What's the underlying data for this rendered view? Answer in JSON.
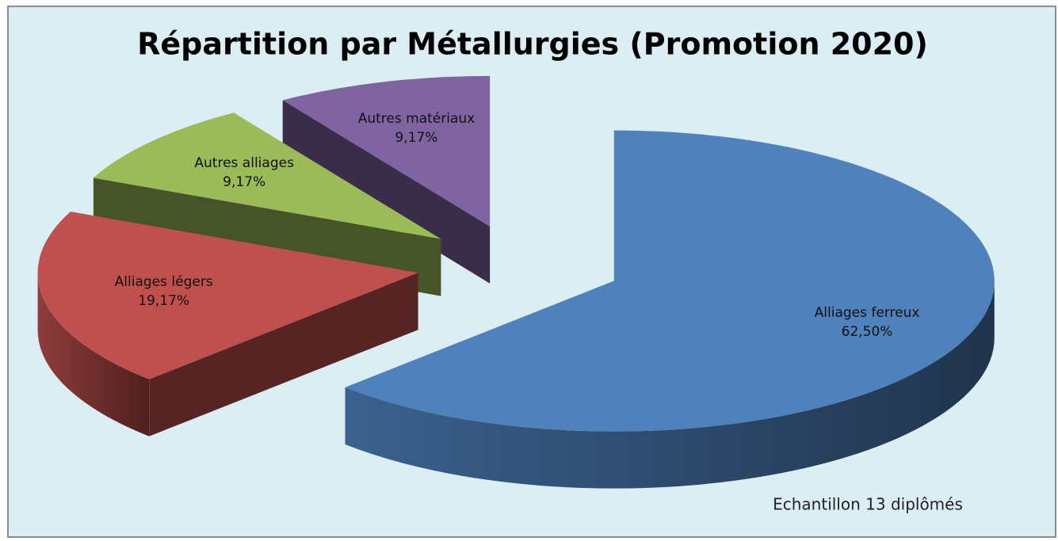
{
  "chart_data": {
    "type": "pie3d",
    "title": "Répartition par Métallurgies (Promotion 2020)",
    "categories": [
      "Alliages ferreux",
      "Alliages légers",
      "Autres alliages",
      "Autres matériaux"
    ],
    "values": [
      62.5,
      19.17,
      9.17,
      9.17
    ],
    "value_labels": [
      "62,50%",
      "19,17%",
      "9,17%",
      "9,17%"
    ],
    "colors": [
      "#4f81bd",
      "#c0504d",
      "#9bbb59",
      "#8064a2"
    ],
    "annotation": "Echantillon 13 diplômés"
  }
}
